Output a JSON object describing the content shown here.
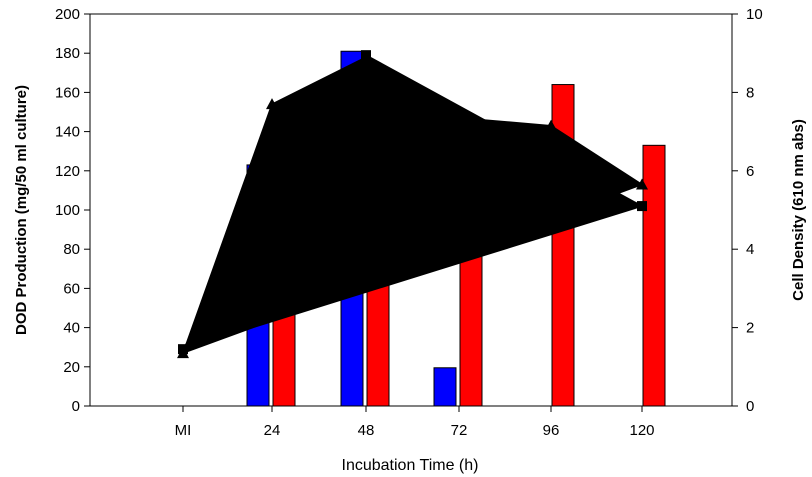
{
  "chart_data": {
    "type": "bar",
    "xlabel": "Incubation Time (h)",
    "ylabel": "DOD Production (mg/50 ml culture)",
    "y2label": "Cell Density (610 nm abs)",
    "categories": [
      "MI",
      "24",
      "48",
      "72",
      "96",
      "120"
    ],
    "ylim": [
      0,
      200
    ],
    "y2lim": [
      0,
      10
    ],
    "yticks": [
      0,
      20,
      40,
      60,
      80,
      100,
      120,
      140,
      160,
      180,
      200
    ],
    "y2ticks": [
      0,
      2,
      4,
      6,
      8,
      10
    ],
    "grid": false,
    "legend": "none",
    "bar_series": [
      {
        "color": "#0000ff",
        "values": [
          null,
          123,
          181,
          19.5,
          null,
          null
        ]
      },
      {
        "color": "#ff0000",
        "values": [
          null,
          100,
          113,
          102,
          164,
          133
        ]
      }
    ],
    "line_series": [
      {
        "marker": "triangle",
        "axis": "right",
        "color": "#000000",
        "values": [
          1.35,
          7.7,
          8.9,
          7.35,
          7.15,
          5.65
        ]
      },
      {
        "marker": "square",
        "axis": "right",
        "color": "#000000",
        "values": [
          1.45,
          null,
          8.95,
          null,
          null,
          5.1
        ]
      }
    ]
  }
}
